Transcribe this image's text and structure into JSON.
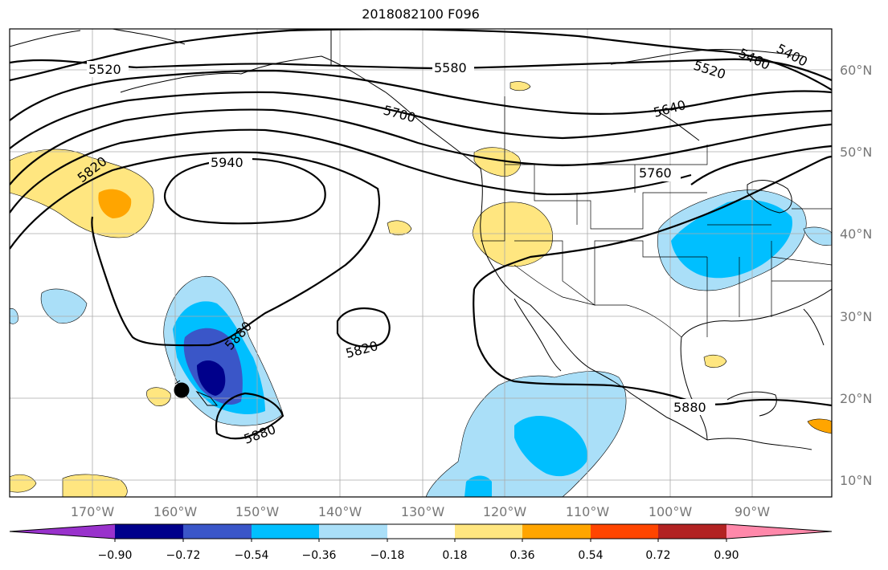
{
  "title": "2018082100 F096",
  "lat_labels": [
    "60°N",
    "50°N",
    "40°N",
    "30°N",
    "20°N",
    "10°N"
  ],
  "lon_labels": [
    "170°W",
    "160°W",
    "150°W",
    "140°W",
    "130°W",
    "120°W",
    "110°W",
    "100°W",
    "90°W"
  ],
  "colorbar": {
    "colors": [
      "#9932cc",
      "#00008b",
      "#3a56c8",
      "#00bfff",
      "#aadff8",
      "#ffffff",
      "#ffe680",
      "#ffa500",
      "#ff4500",
      "#b22222",
      "#ff88aa"
    ],
    "tick_labels": [
      "−0.90",
      "−0.72",
      "−0.54",
      "−0.36",
      "−0.18",
      "0.18",
      "0.36",
      "0.54",
      "0.72",
      "0.90"
    ]
  },
  "contour_labels": [
    {
      "text": "5520"
    },
    {
      "text": "5580"
    },
    {
      "text": "5520"
    },
    {
      "text": "5460"
    },
    {
      "text": "5400"
    },
    {
      "text": "5700"
    },
    {
      "text": "5640"
    },
    {
      "text": "5820"
    },
    {
      "text": "5940"
    },
    {
      "text": "5760"
    },
    {
      "text": "5880"
    },
    {
      "text": "5820"
    },
    {
      "text": "5880"
    },
    {
      "text": "5880"
    }
  ]
}
